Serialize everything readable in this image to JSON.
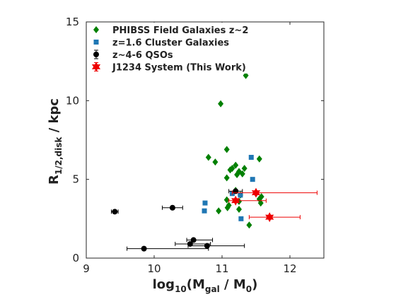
{
  "chart_data": {
    "type": "scatter",
    "xlabel": {
      "main": "log",
      "sub1": "10",
      "mid": "(M",
      "sub2": "gal",
      "mid2": " / M",
      "sub3": "0",
      "end": ")"
    },
    "ylabel": {
      "main": "R",
      "sub": "1/2,disk",
      "end": " / kpc"
    },
    "xlim": [
      9,
      12.5
    ],
    "ylim": [
      0,
      15
    ],
    "xticks": [
      "9",
      "10",
      "11",
      "12"
    ],
    "yticks": [
      "0",
      "5",
      "10",
      "15"
    ],
    "grid": false,
    "legend_position": "top-left",
    "series": [
      {
        "name": "PHIBSS Field Galaxies z~2",
        "color": "#008000",
        "marker": "diamond",
        "points": [
          [
            11.35,
            11.6
          ],
          [
            10.98,
            9.8
          ],
          [
            10.8,
            6.4
          ],
          [
            10.9,
            6.1
          ],
          [
            11.07,
            6.9
          ],
          [
            11.2,
            5.9
          ],
          [
            11.12,
            5.6
          ],
          [
            11.15,
            5.7
          ],
          [
            11.25,
            5.5
          ],
          [
            11.33,
            5.7
          ],
          [
            11.55,
            6.3
          ],
          [
            11.3,
            5.35
          ],
          [
            11.22,
            5.3
          ],
          [
            11.07,
            5.1
          ],
          [
            11.2,
            4.3
          ],
          [
            11.27,
            4.0
          ],
          [
            11.5,
            4.1
          ],
          [
            11.58,
            3.9
          ],
          [
            11.07,
            3.7
          ],
          [
            11.25,
            3.6
          ],
          [
            11.55,
            3.75
          ],
          [
            11.57,
            3.5
          ],
          [
            11.1,
            3.35
          ],
          [
            11.08,
            3.2
          ],
          [
            11.25,
            3.1
          ],
          [
            10.95,
            3.0
          ],
          [
            11.4,
            2.1
          ]
        ]
      },
      {
        "name": "z=1.6 Cluster Galaxies",
        "color": "#1f77b4",
        "marker": "square",
        "points": [
          [
            11.43,
            6.4
          ],
          [
            11.45,
            5.0
          ],
          [
            11.15,
            4.1
          ],
          [
            10.75,
            3.5
          ],
          [
            10.74,
            3.0
          ],
          [
            11.28,
            2.5
          ],
          [
            11.27,
            4.0
          ]
        ]
      },
      {
        "name": "z~4-6 QSOs",
        "color": "#000000",
        "marker": "circle",
        "points": [
          {
            "x": 9.42,
            "y": 2.95,
            "xerr": [
              0.05,
              0.05
            ]
          },
          {
            "x": 10.27,
            "y": 3.2,
            "xerr": [
              0.15,
              0.15
            ]
          },
          {
            "x": 11.2,
            "y": 4.25,
            "xerr": [
              0.1,
              0.1
            ]
          },
          {
            "x": 10.58,
            "y": 1.15,
            "xerr": [
              0.1,
              0.28
            ]
          },
          {
            "x": 10.53,
            "y": 0.9,
            "xerr": [
              0.22,
              0.3
            ]
          },
          {
            "x": 10.78,
            "y": 0.78,
            "xerr": [
              0.28,
              0.55
            ]
          },
          {
            "x": 9.85,
            "y": 0.6,
            "xerr": [
              0.25,
              0.95
            ]
          }
        ]
      },
      {
        "name": "J1234 System (This Work)",
        "color": "#ee0000",
        "marker": "hexagram",
        "points": [
          {
            "x": 11.5,
            "y": 4.15,
            "xerr": [
              0.35,
              0.9
            ]
          },
          {
            "x": 11.2,
            "y": 3.65,
            "xerr": [
              0.1,
              0.45
            ]
          },
          {
            "x": 11.7,
            "y": 2.6,
            "xerr": [
              0.3,
              0.45
            ]
          }
        ]
      }
    ]
  }
}
